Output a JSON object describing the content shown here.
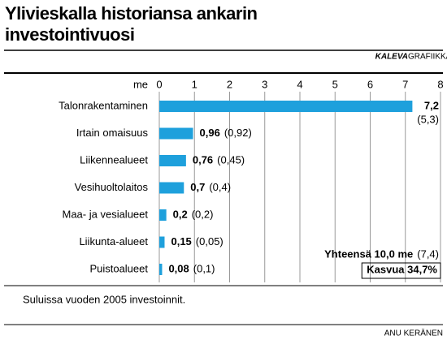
{
  "chart_data": {
    "type": "bar",
    "orientation": "horizontal",
    "title": "Ylivieskalla historiansa ankarin investointivuosi",
    "credit_brand": "KALEVA",
    "credit_suffix": "GRAFIIKKA",
    "author": "ANU KERÄNEN",
    "x_label": "me",
    "categories": [
      "Talonrakentaminen",
      "Irtain omaisuus",
      "Liikennealueet",
      "Vesihuoltolaitos",
      "Maa- ja vesialueet",
      "Liikunta-alueet",
      "Puistoalueet"
    ],
    "values": [
      7.2,
      0.96,
      0.76,
      0.7,
      0.2,
      0.15,
      0.08
    ],
    "value_labels": [
      "7,2",
      "0,96",
      "0,76",
      "0,7",
      "0,2",
      "0,15",
      "0,08"
    ],
    "previous": {
      "values": [
        5.3,
        0.92,
        0.45,
        0.4,
        0.2,
        0.05,
        0.1
      ],
      "value_labels": [
        "(5,3)",
        "(0,92)",
        "(0,45)",
        "(0,4)",
        "(0,2)",
        "(0,05)",
        "(0,1)"
      ]
    },
    "color": "#1ea0dc",
    "xlim": [
      0,
      8
    ],
    "xticks": [
      0,
      1,
      2,
      3,
      4,
      5,
      6,
      7,
      8
    ],
    "grid": true,
    "total": "Yhteensä 10,0 me",
    "total_previous": "(7,4)",
    "growth": "Kasvua 34,7%",
    "note": "Suluissa vuoden 2005 investoinnit."
  }
}
